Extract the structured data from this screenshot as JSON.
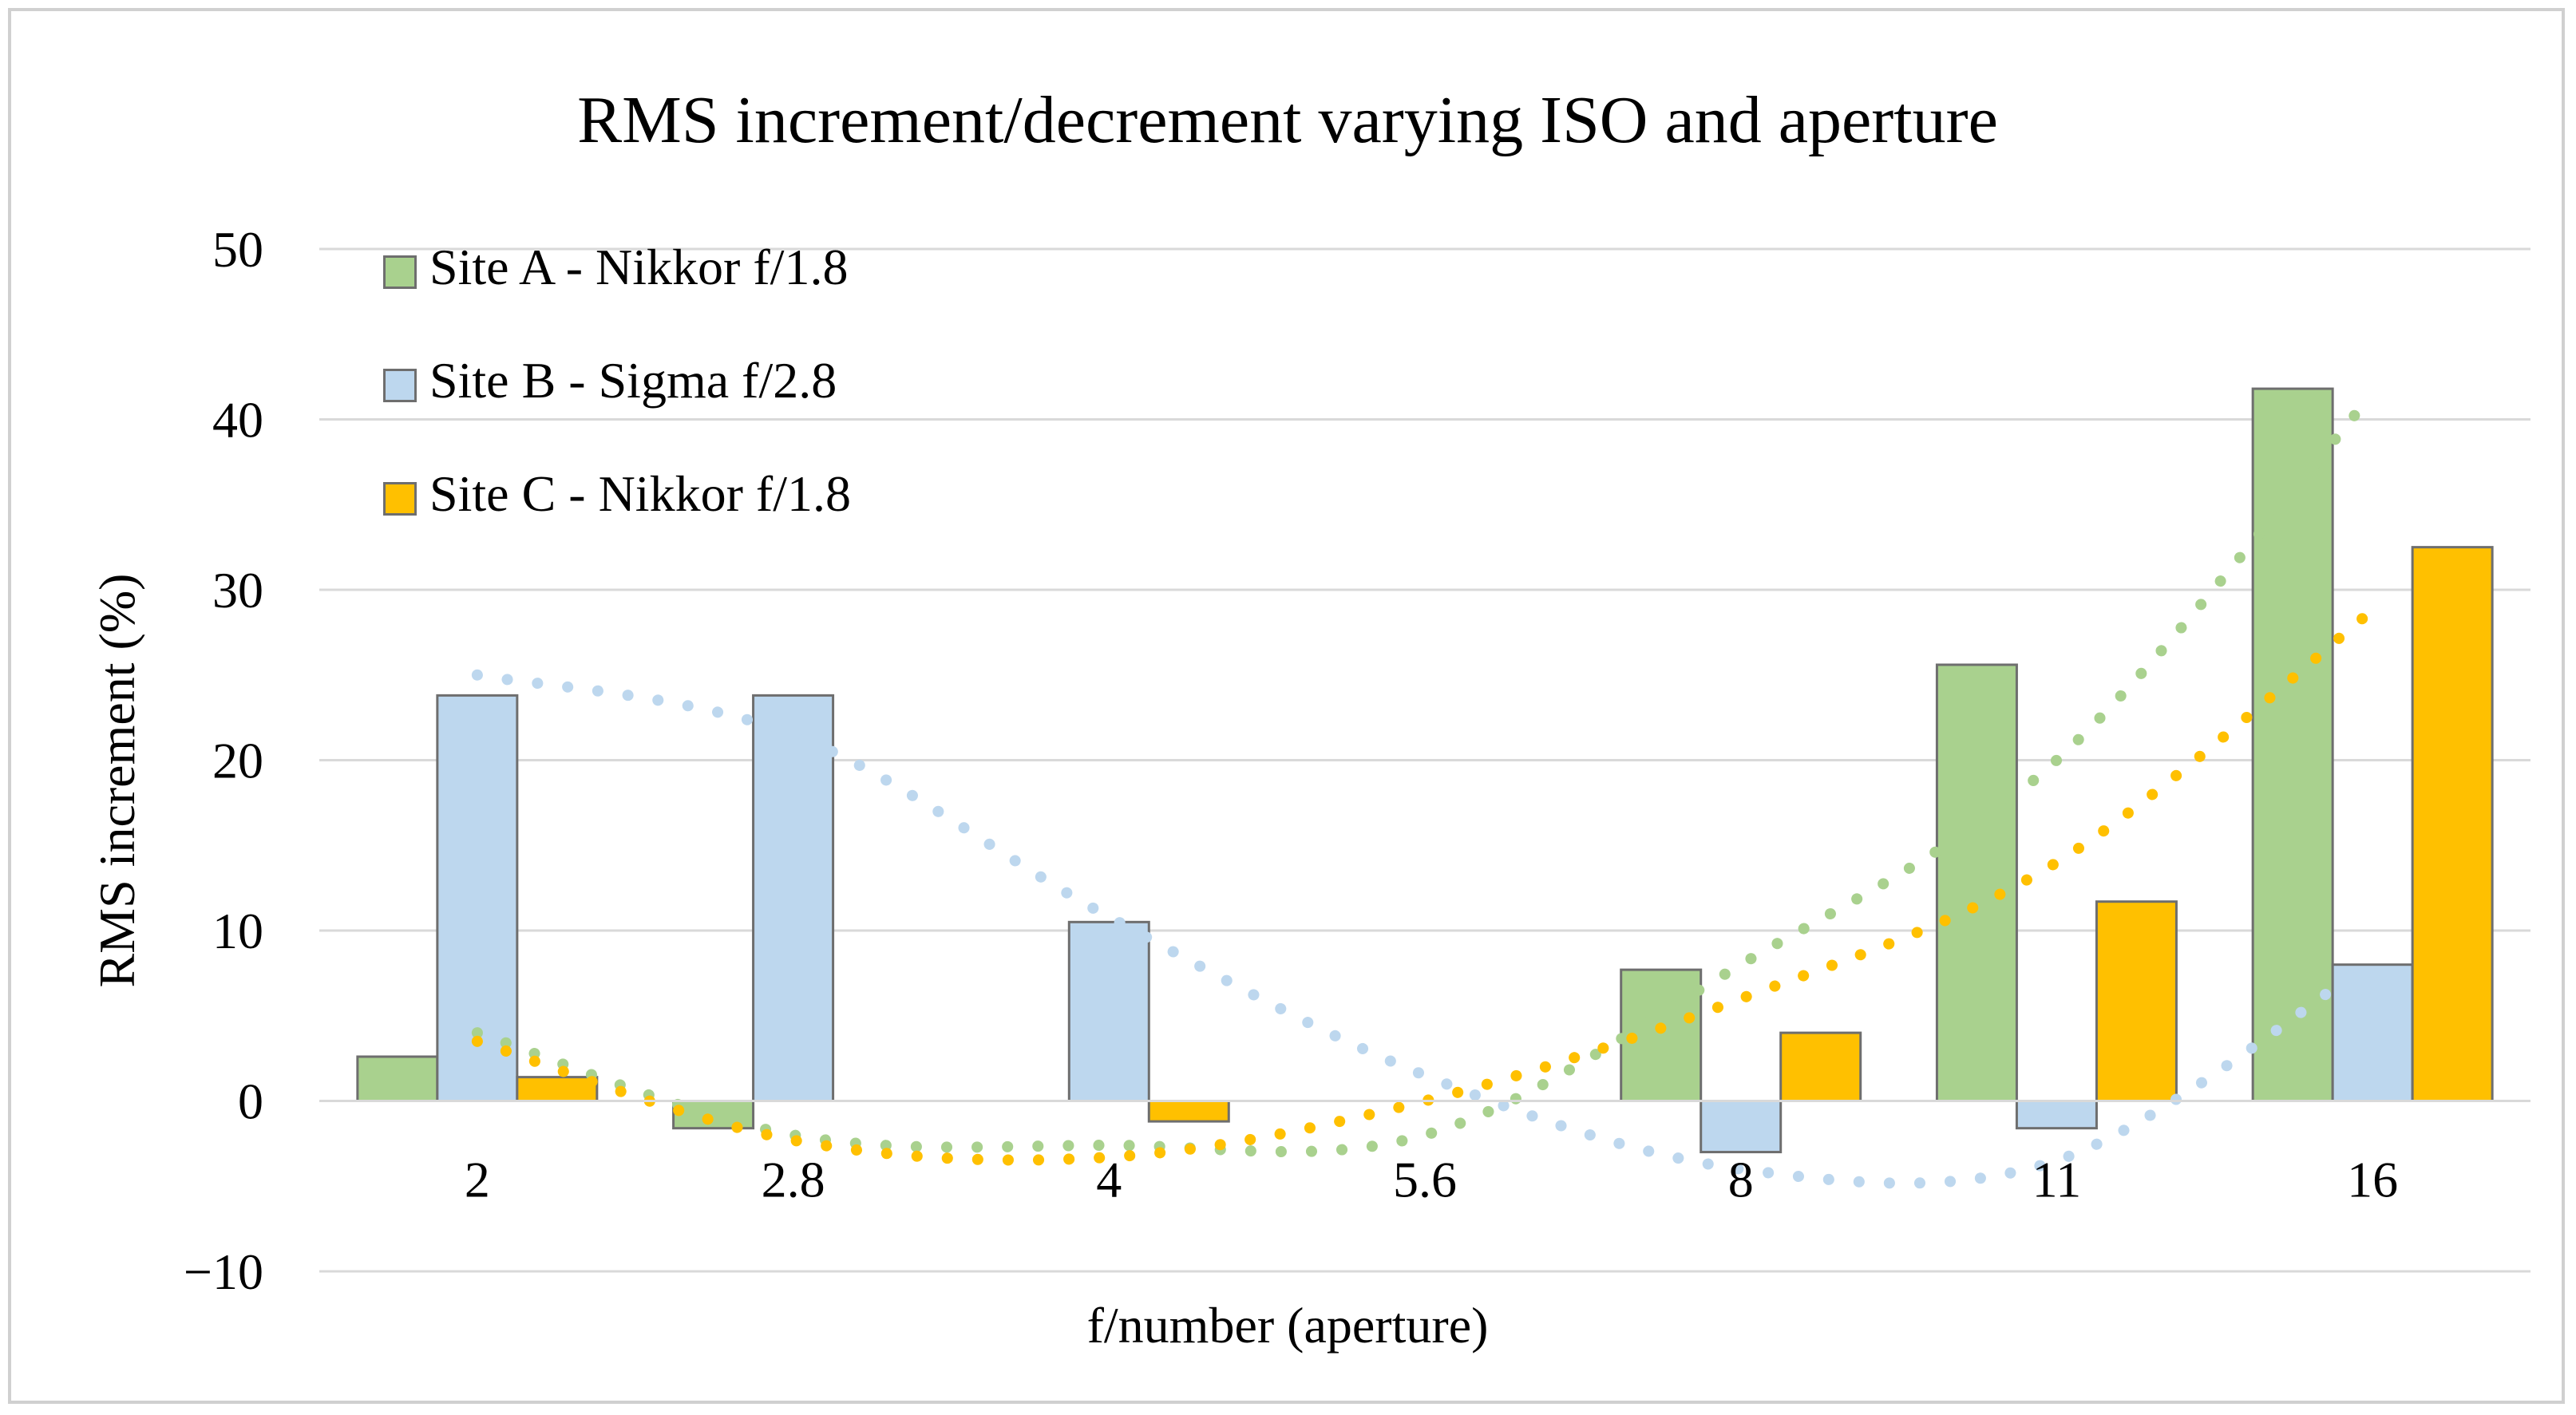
{
  "chart_data": {
    "type": "bar",
    "title": "RMS increment/decrement varying ISO and aperture",
    "xlabel": "f/number (aperture)",
    "ylabel": "RMS increment (%)",
    "ylim": [
      -10,
      50
    ],
    "yticks": [
      "−10",
      "0",
      "10",
      "20",
      "30",
      "40",
      "50"
    ],
    "categories": [
      "2",
      "2.8",
      "4",
      "5.6",
      "8",
      "11",
      "16"
    ],
    "grid": true,
    "legend_position": "top-left",
    "series": [
      {
        "name": "Site A - Nikkor f/1.8",
        "color": "#a9d18e",
        "values": [
          2.6,
          -1.6,
          0,
          0,
          7.7,
          25.6,
          41.8
        ],
        "trend": [
          4.0,
          -2.0,
          -2.6,
          -2.0,
          8.0,
          20.0,
          41.5
        ]
      },
      {
        "name": "Site B - Sigma f/2.8",
        "color": "#bdd7ee",
        "values": [
          23.8,
          23.8,
          10.5,
          0,
          -3.0,
          -1.6,
          8.0
        ],
        "trend": [
          25.0,
          21.5,
          10.8,
          1.5,
          -4.0,
          -3.5,
          8.2
        ]
      },
      {
        "name": "Site C - Nikkor f/1.8",
        "color": "#ffc000",
        "values": [
          1.4,
          0,
          -1.2,
          0,
          4.0,
          11.7,
          32.5
        ],
        "trend": [
          3.5,
          -2.3,
          -3.3,
          0.0,
          6.0,
          14.0,
          28.8
        ]
      }
    ]
  }
}
